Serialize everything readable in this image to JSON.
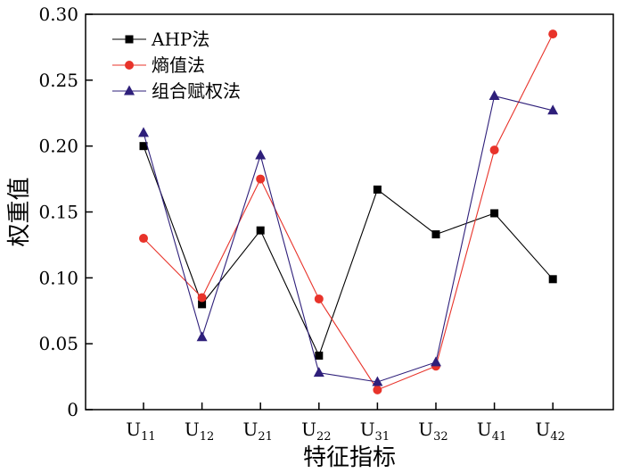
{
  "chart_data": {
    "type": "line",
    "xlabel": "特征指标",
    "ylabel": "权重值",
    "ylim": [
      0,
      0.3
    ],
    "yticks": [
      "0",
      "0.05",
      "0.10",
      "0.15",
      "0.20",
      "0.25",
      "0.30"
    ],
    "yticks_values": [
      0,
      0.05,
      0.1,
      0.15,
      0.2,
      0.25,
      0.3
    ],
    "categories": [
      {
        "base": "U",
        "sub": "11"
      },
      {
        "base": "U",
        "sub": "12"
      },
      {
        "base": "U",
        "sub": "21"
      },
      {
        "base": "U",
        "sub": "22"
      },
      {
        "base": "U",
        "sub": "31"
      },
      {
        "base": "U",
        "sub": "32"
      },
      {
        "base": "U",
        "sub": "41"
      },
      {
        "base": "U",
        "sub": "42"
      }
    ],
    "legend_position": "top-left",
    "grid": false,
    "series": [
      {
        "name": "AHP法",
        "color": "#000000",
        "marker": "square",
        "values": [
          0.2,
          0.08,
          0.136,
          0.041,
          0.167,
          0.133,
          0.149,
          0.099
        ]
      },
      {
        "name": "熵值法",
        "color": "#e8332a",
        "marker": "circle",
        "values": [
          0.13,
          0.085,
          0.175,
          0.084,
          0.015,
          0.033,
          0.197,
          0.285
        ]
      },
      {
        "name": "组合赋权法",
        "color": "#2e1f7a",
        "marker": "triangle",
        "values": [
          0.21,
          0.055,
          0.193,
          0.028,
          0.021,
          0.036,
          0.238,
          0.227
        ]
      }
    ]
  }
}
